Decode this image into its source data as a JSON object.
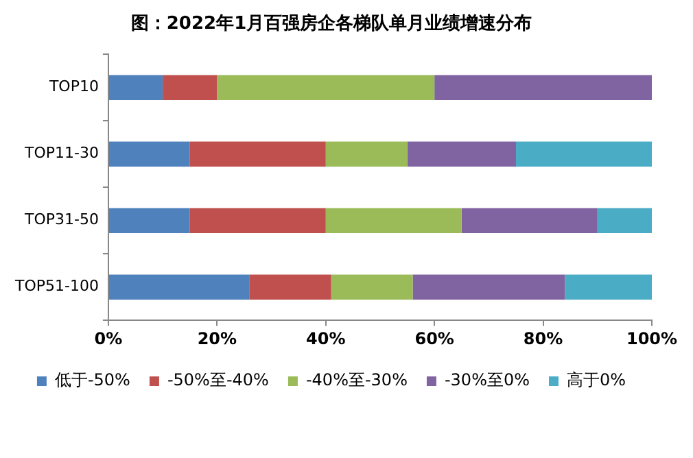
{
  "chart_data": {
    "type": "bar",
    "orientation": "horizontal",
    "stacked": true,
    "title": "图：2022年1月百强房企各梯队单月业绩增速分布",
    "categories": [
      "TOP10",
      "TOP11-30",
      "TOP31-50",
      "TOP51-100"
    ],
    "series": [
      {
        "name": "低于-50%",
        "color": "#4f81bd",
        "values": [
          10,
          15,
          15,
          26
        ]
      },
      {
        "name": "-50%至-40%",
        "color": "#c0504d",
        "values": [
          10,
          25,
          25,
          15
        ]
      },
      {
        "name": "-40%至-30%",
        "color": "#9bbb59",
        "values": [
          40,
          15,
          25,
          15
        ]
      },
      {
        "name": "-30%至0%",
        "color": "#8064a2",
        "values": [
          40,
          20,
          25,
          28
        ]
      },
      {
        "name": "高于0%",
        "color": "#4bacc6",
        "values": [
          0,
          25,
          10,
          16
        ]
      }
    ],
    "xlim": [
      0,
      100
    ],
    "xticks": [
      {
        "value": 0,
        "label": "0%"
      },
      {
        "value": 20,
        "label": "20%"
      },
      {
        "value": 40,
        "label": "40%"
      },
      {
        "value": 60,
        "label": "60%"
      },
      {
        "value": 80,
        "label": "80%"
      },
      {
        "value": 100,
        "label": "100%"
      }
    ],
    "grid": false,
    "legend": "bottom"
  }
}
